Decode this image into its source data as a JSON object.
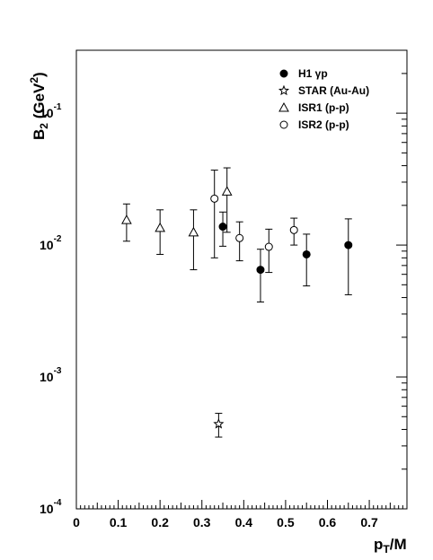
{
  "chart_data": {
    "type": "scatter",
    "xlabel": {
      "main": "p",
      "sub": "T",
      "suffix": "/M"
    },
    "ylabel": {
      "main": "B",
      "sub": "2",
      "open": " (GeV",
      "sup": "2",
      "close": ")"
    },
    "xlim": [
      0,
      0.79
    ],
    "ylim": [
      0.0001,
      0.3
    ],
    "y_scale": "log",
    "grid": false,
    "legend_position": "top-right",
    "x_ticks": [
      {
        "value": 0,
        "label": "0"
      },
      {
        "value": 0.1,
        "label": "0.1"
      },
      {
        "value": 0.2,
        "label": "0.2"
      },
      {
        "value": 0.3,
        "label": "0.3"
      },
      {
        "value": 0.4,
        "label": "0.4"
      },
      {
        "value": 0.5,
        "label": "0.5"
      },
      {
        "value": 0.6,
        "label": "0.6"
      },
      {
        "value": 0.7,
        "label": "0.7"
      }
    ],
    "y_ticks": [
      {
        "value": 0.1,
        "base": "10",
        "exp": "-1"
      },
      {
        "value": 0.01,
        "base": "10",
        "exp": "-2"
      },
      {
        "value": 0.001,
        "base": "10",
        "exp": "-3"
      },
      {
        "value": 0.0001,
        "base": "10",
        "exp": "-4"
      }
    ],
    "series": [
      {
        "name": "H1 γp",
        "marker": "filled-circle",
        "points": [
          {
            "x": 0.35,
            "y": 0.0138,
            "y_low": 0.0098,
            "y_high": 0.0178
          },
          {
            "x": 0.44,
            "y": 0.0065,
            "y_low": 0.0037,
            "y_high": 0.0093
          },
          {
            "x": 0.55,
            "y": 0.0085,
            "y_low": 0.0049,
            "y_high": 0.0121
          },
          {
            "x": 0.65,
            "y": 0.01,
            "y_low": 0.0042,
            "y_high": 0.0158
          }
        ]
      },
      {
        "name": "STAR (Au-Au)",
        "marker": "open-star",
        "points": [
          {
            "x": 0.34,
            "y": 0.00044,
            "y_low": 0.00035,
            "y_high": 0.00053
          }
        ]
      },
      {
        "name": "ISR1 (p-p)",
        "marker": "open-triangle",
        "points": [
          {
            "x": 0.12,
            "y": 0.0155,
            "y_low": 0.0107,
            "y_high": 0.0205
          },
          {
            "x": 0.2,
            "y": 0.0135,
            "y_low": 0.0085,
            "y_high": 0.0185
          },
          {
            "x": 0.28,
            "y": 0.0125,
            "y_low": 0.0065,
            "y_high": 0.0185
          },
          {
            "x": 0.36,
            "y": 0.0255,
            "y_low": 0.0125,
            "y_high": 0.0385
          }
        ]
      },
      {
        "name": "ISR2 (p-p)",
        "marker": "open-circle",
        "points": [
          {
            "x": 0.33,
            "y": 0.0225,
            "y_low": 0.008,
            "y_high": 0.037
          },
          {
            "x": 0.39,
            "y": 0.0113,
            "y_low": 0.0076,
            "y_high": 0.015
          },
          {
            "x": 0.46,
            "y": 0.0097,
            "y_low": 0.0062,
            "y_high": 0.0132
          },
          {
            "x": 0.52,
            "y": 0.013,
            "y_low": 0.01,
            "y_high": 0.016
          }
        ]
      }
    ]
  }
}
